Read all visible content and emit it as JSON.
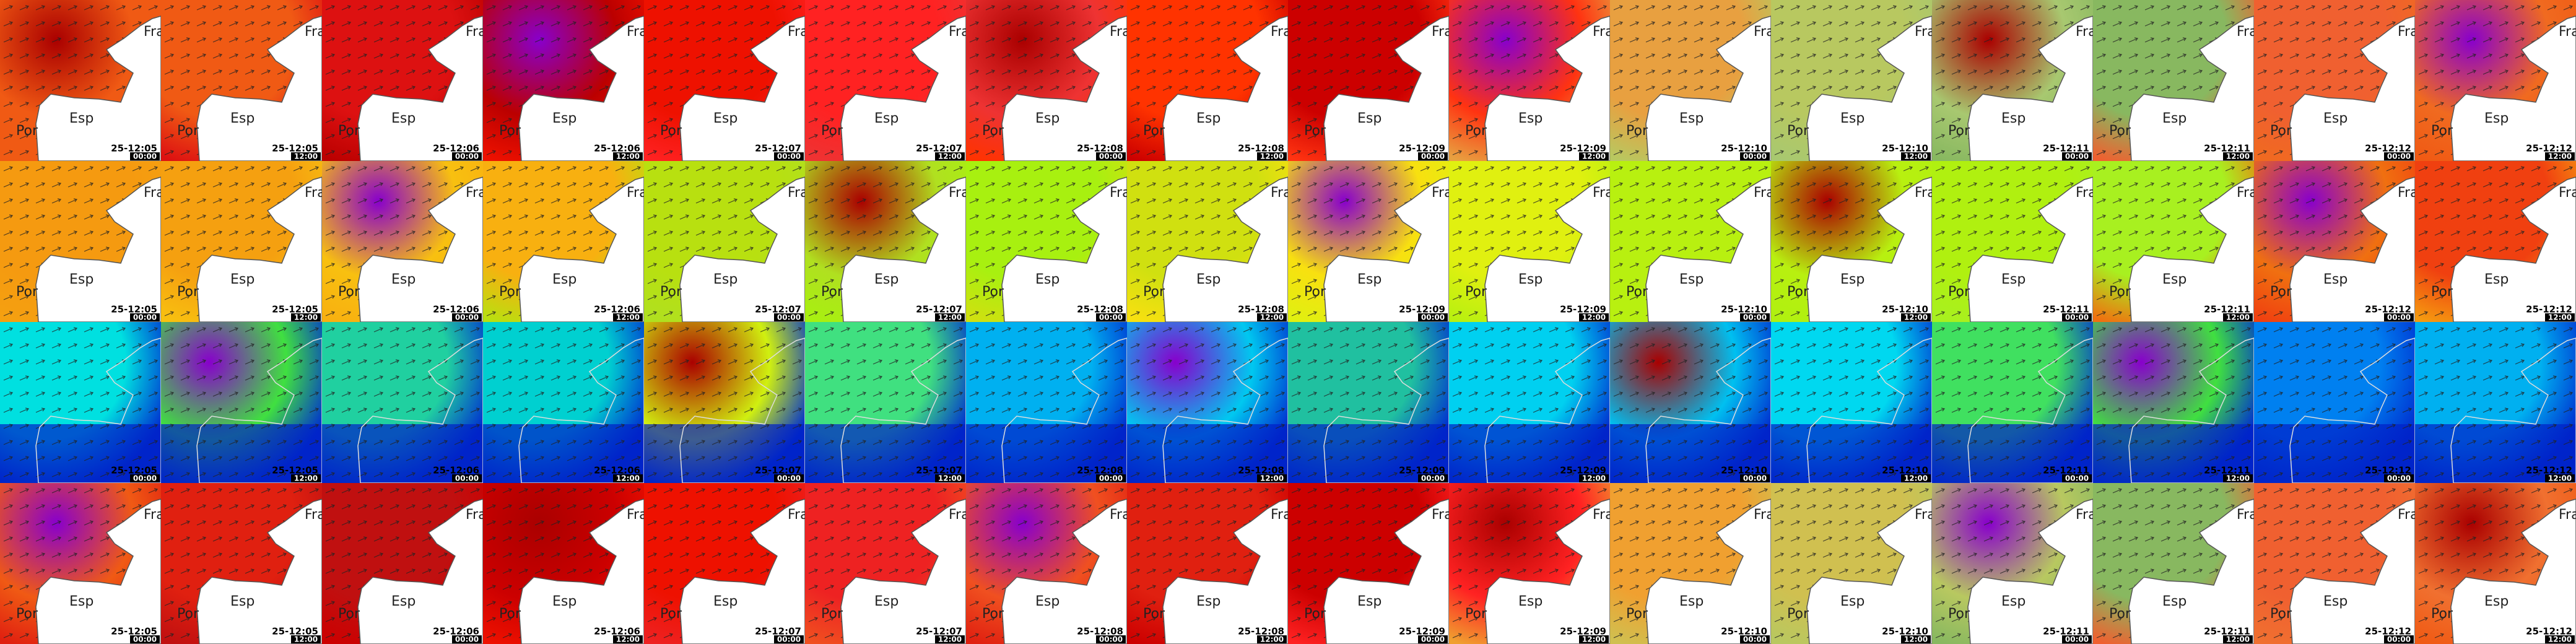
{
  "place_labels": {
    "france": "Fra",
    "spain": "Esp",
    "portugal": "Por"
  },
  "rows": [
    {
      "place_labels": true
    },
    {
      "place_labels": true
    },
    {
      "place_labels": false
    },
    {
      "place_labels": true
    }
  ],
  "columns": [
    {
      "date": "25-12:05",
      "time": "00:00"
    },
    {
      "date": "25-12:05",
      "time": "12:00"
    },
    {
      "date": "25-12:06",
      "time": "00:00"
    },
    {
      "date": "25-12:06",
      "time": "12:00"
    },
    {
      "date": "25-12:07",
      "time": "00:00"
    },
    {
      "date": "25-12:07",
      "time": "12:00"
    },
    {
      "date": "25-12:08",
      "time": "00:00"
    },
    {
      "date": "25-12:08",
      "time": "12:00"
    },
    {
      "date": "25-12:09",
      "time": "00:00"
    },
    {
      "date": "25-12:09",
      "time": "12:00"
    },
    {
      "date": "25-12:10",
      "time": "00:00"
    },
    {
      "date": "25-12:10",
      "time": "12:00"
    },
    {
      "date": "25-12:11",
      "time": "00:00"
    },
    {
      "date": "25-12:11",
      "time": "12:00"
    },
    {
      "date": "25-12:12",
      "time": "00:00"
    },
    {
      "date": "25-12:12",
      "time": "12:00"
    }
  ]
}
